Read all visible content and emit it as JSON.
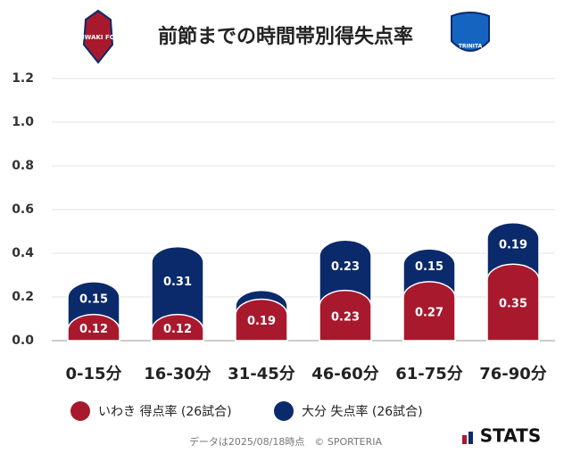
{
  "chart_data": {
    "type": "stacked-bar",
    "title": "前節までの時間帯別得失点率",
    "categories": [
      "0-15分",
      "16-30分",
      "31-45分",
      "46-60分",
      "61-75分",
      "76-90分"
    ],
    "series": [
      {
        "name": "いわき 得点率 (26試合)",
        "color": "#a8192e",
        "values": [
          0.12,
          0.12,
          0.19,
          0.23,
          0.27,
          0.35
        ]
      },
      {
        "name": "大分 失点率 (26試合)",
        "color": "#0b2a6b",
        "values": [
          0.15,
          0.31,
          0.04,
          0.23,
          0.15,
          0.19
        ],
        "value_labels": [
          "0.15",
          "0.31",
          null,
          "0.23",
          "0.15",
          "0.19"
        ]
      }
    ],
    "ylim": [
      0,
      1.2
    ],
    "yticks": [
      {
        "value": 0,
        "label": "0.0"
      },
      0.2,
      0.4,
      0.6,
      0.8,
      {
        "value": 1,
        "label": "1.0"
      },
      1.2
    ],
    "grid": true
  },
  "logos": {
    "left": "IWAKI FC",
    "right": "TRINITA"
  },
  "footer": {
    "note": "データは2025/08/18時点　© SPORTERIA",
    "brand": "STATS"
  }
}
